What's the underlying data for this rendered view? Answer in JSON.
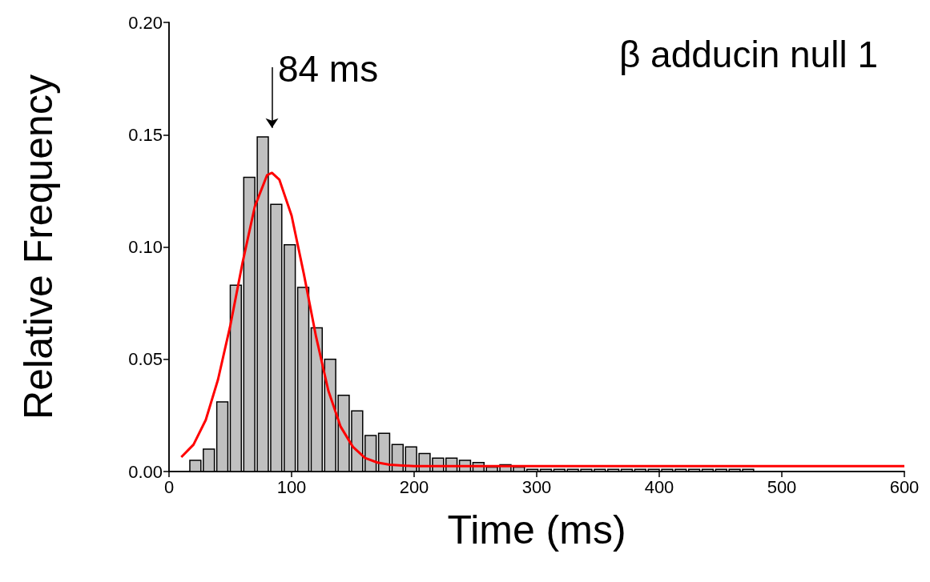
{
  "chart_data": {
    "type": "histogram",
    "title": "β adducin null 1",
    "xlabel": "Time (ms)",
    "ylabel": "Relative Frequency",
    "xlim": [
      0,
      600
    ],
    "xticks": [
      0,
      100,
      200,
      300,
      400,
      500,
      600
    ],
    "ylim": [
      0,
      0.2
    ],
    "yticks": [
      {
        "value": 0,
        "label": "0.00"
      },
      0.05,
      {
        "value": 0.1,
        "label": "0.10"
      },
      0.15,
      {
        "value": 0.2,
        "label": "0.20"
      }
    ],
    "grid": false,
    "annotations": [
      "84 ms"
    ],
    "series": [
      {
        "color": "#c0c0c0",
        "bins": [
          16,
          27,
          38,
          49,
          60,
          71,
          82,
          93,
          104,
          115,
          126,
          137,
          148,
          159,
          170,
          181,
          192,
          203,
          214,
          225,
          236,
          247,
          258,
          269,
          280,
          291,
          302,
          313,
          324,
          335,
          346,
          357,
          368,
          379,
          390,
          401,
          412,
          423,
          434,
          445,
          456,
          467,
          478
        ],
        "values": [
          0.005,
          0.01,
          0.031,
          0.083,
          0.131,
          0.149,
          0.119,
          0.101,
          0.082,
          0.064,
          0.05,
          0.034,
          0.027,
          0.016,
          0.017,
          0.012,
          0.011,
          0.008,
          0.006,
          0.006,
          0.005,
          0.004,
          0.002,
          0.003,
          0.002,
          0.001,
          0.001,
          0.001,
          0.001,
          0.001,
          0.001,
          0.001,
          0.001,
          0.001,
          0.001,
          0.001,
          0.001,
          0.001,
          0.001,
          0.001,
          0.001,
          0.001
        ]
      },
      {
        "type": "line",
        "color": "#ff0000",
        "marker": "none",
        "x": [
          10,
          20,
          30,
          40,
          50,
          60,
          70,
          80,
          84,
          90,
          100,
          110,
          120,
          130,
          140,
          150,
          160,
          170,
          180,
          200,
          300,
          400,
          500,
          600
        ],
        "values": [
          0.0064,
          0.012,
          0.023,
          0.041,
          0.065,
          0.093,
          0.118,
          0.132,
          0.133,
          0.13,
          0.114,
          0.088,
          0.06,
          0.036,
          0.02,
          0.011,
          0.006,
          0.004,
          0.003,
          0.0024,
          0.0024,
          0.0024,
          0.0024,
          0.0024
        ]
      }
    ]
  }
}
